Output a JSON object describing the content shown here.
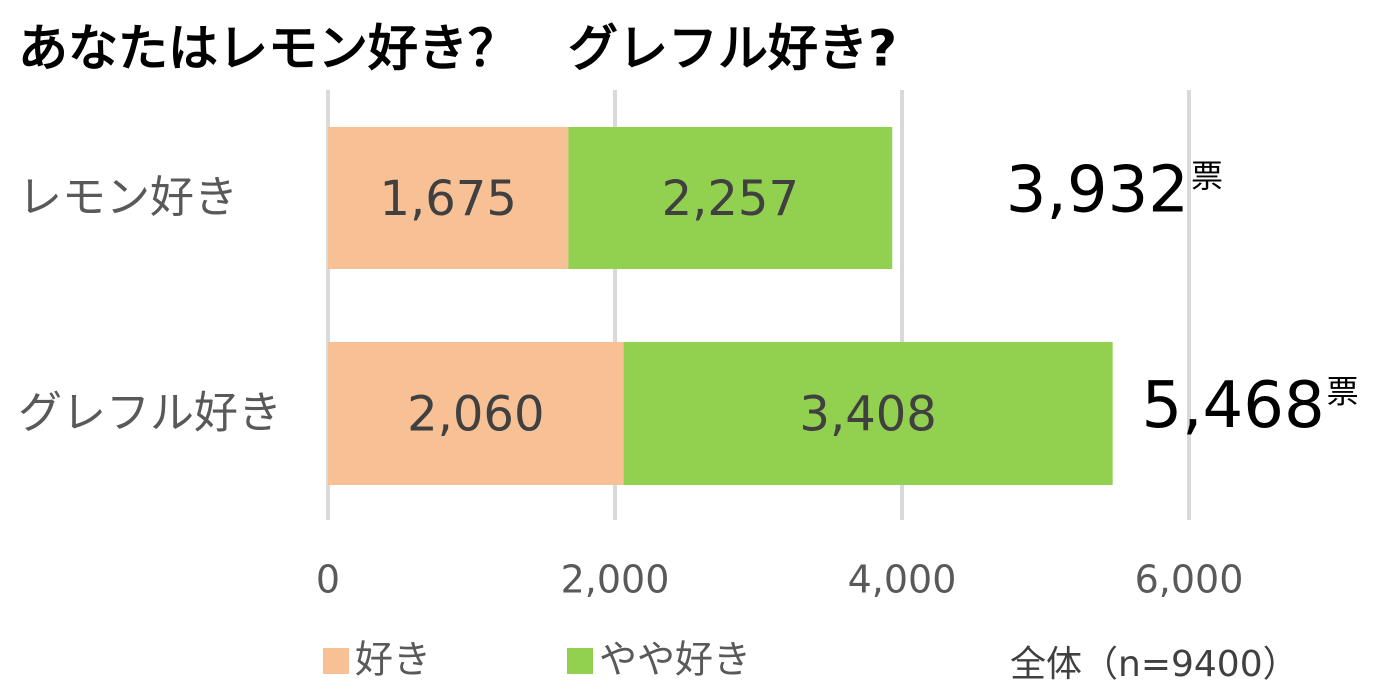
{
  "chart_data": {
    "type": "stacked-barh",
    "title": "あなたはレモン好き？　グレフル好き?",
    "categories": [
      "レモン好き",
      "グレフル好き"
    ],
    "series": [
      {
        "name": "好き",
        "color": "#f8c195",
        "values": [
          1675,
          2060
        ],
        "value_labels": [
          "1,675",
          "2,060"
        ]
      },
      {
        "name": "やや好き",
        "color": "#92d050",
        "values": [
          2257,
          3408
        ],
        "value_labels": [
          "2,257",
          "3,408"
        ]
      }
    ],
    "totals": [
      3932,
      5468
    ],
    "total_labels": [
      "3,932",
      "5,468"
    ],
    "total_unit": "票",
    "note": "全体（n=9400）",
    "xlim": [
      0,
      6000
    ],
    "xticks": [
      0,
      {
        "value": 2000,
        "label": "2,000"
      },
      {
        "value": 4000,
        "label": "4,000"
      },
      {
        "value": 6000,
        "label": "6,000"
      }
    ],
    "grid": true
  }
}
